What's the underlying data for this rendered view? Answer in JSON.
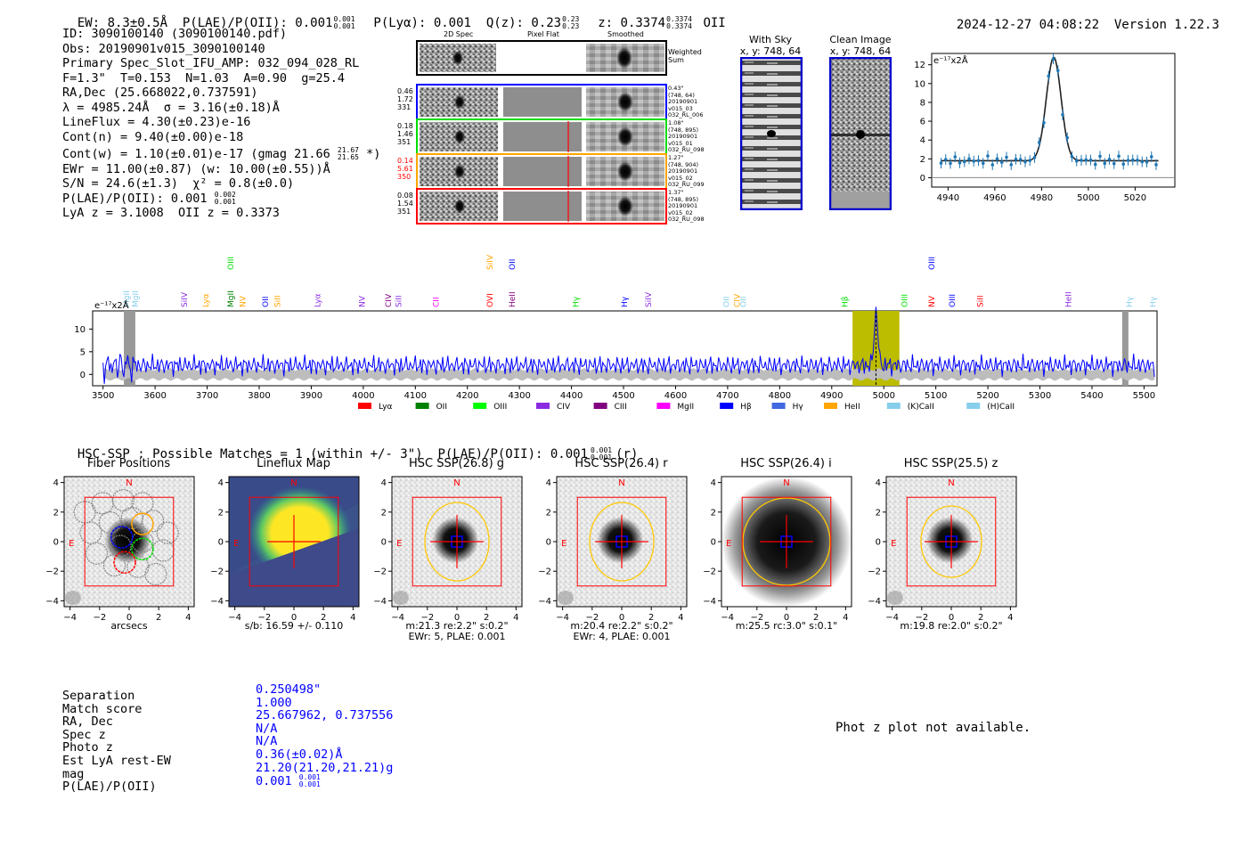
{
  "header": {
    "summary": "EW: 8.3±0.5Å  P(LAE)/P(OII): 0.001",
    "summary_sup": "0.001",
    "summary_sub": "0.001",
    "plya": "P(Lyα): 0.001  Q(z): 0.23",
    "q_sup": "0.23",
    "q_sub": "0.23",
    "z_text": "z: 0.3374",
    "z_sup": "0.3374",
    "z_sub": "0.3374",
    "z_line": "OII",
    "datetime": "2024-12-27 04:08:22",
    "version": "Version 1.22.3"
  },
  "info": {
    "lines": [
      "ID: 3090100140 (3090100140.pdf)",
      "Obs: 20190901v015_3090100140",
      "Primary Spec_Slot_IFU_AMP: 032_094_028_RL",
      "F=1.3\"  T=0.153  N=1.03  A=0.90  g=25.4",
      "RA,Dec (25.668022,0.737591)",
      "λ = 4985.24Å  σ = 3.16(±0.18)Å",
      "LineFlux = 4.30(±0.23)e-16",
      "Cont(n) = 9.40(±0.00)e-18"
    ],
    "contw": "Cont(w) = 1.10(±0.01)e-17 (gmag 21.66",
    "contw_sup": "21.67",
    "contw_sub": "21.65",
    "contw_end": "*)",
    "ewr": "EWr = 11.00(±0.87) (w: 10.00(±0.55))Å",
    "sn": "S/N = 24.6(±1.3)  χ² = 0.8(±0.0)",
    "plae": "P(LAE)/P(OII): 0.001",
    "plae_sup": "0.002",
    "plae_sub": "0.001",
    "lya": "LyA z = 3.1008  OII z = 0.3373"
  },
  "cutouts": {
    "col_2d": "2D Spec",
    "col_flat": "Pixel Flat",
    "col_smooth": "Smoothed",
    "weighted": "Weighted Sum",
    "rows": [
      {
        "left": [
          "0.46",
          "1.72",
          "331"
        ],
        "right": [
          "0.43\"",
          "(748, 64)",
          "20190901",
          "v015_03",
          "032_RL_006"
        ],
        "color": "#0000ff"
      },
      {
        "left": [
          "0.18",
          "1.46",
          "351"
        ],
        "right": [
          "1.08\"",
          "(748, 895)",
          "20190901",
          "v015_01",
          "032_RU_098"
        ],
        "color": "#00dd00"
      },
      {
        "left": [
          "0.14",
          "5.61",
          "350"
        ],
        "right": [
          "1.27\"",
          "(748, 904)",
          "20190901",
          "v015_02",
          "032_RU_099"
        ],
        "color": "#ffa500"
      },
      {
        "left": [
          "0.08",
          "1.54",
          "351"
        ],
        "right": [
          "1.37\"",
          "(748, 895)",
          "20190901",
          "v015_02",
          "032_RU_098"
        ],
        "color": "#ff0000"
      }
    ]
  },
  "thumbs": {
    "with_sky": "With Sky",
    "with_sky_xy": "x, y: 748, 64",
    "clean": "Clean Image",
    "clean_xy": "x, y: 748, 64"
  },
  "zoom": {
    "unit": "e⁻¹⁷x2Å",
    "x_ticks": [
      "4940",
      "4960",
      "4980",
      "5000",
      "5020"
    ],
    "y_ticks": [
      "0",
      "2",
      "4",
      "6",
      "8",
      "10",
      "12"
    ]
  },
  "spectrum": {
    "unit": "e⁻¹⁷x2Å",
    "x_ticks": [
      "3500",
      "3600",
      "3700",
      "3800",
      "3900",
      "4000",
      "4100",
      "4200",
      "4300",
      "4400",
      "4500",
      "4600",
      "4700",
      "4800",
      "4900",
      "5000",
      "5100",
      "5200",
      "5300",
      "5400",
      "5500"
    ],
    "y_ticks": [
      "0",
      "5",
      "10"
    ],
    "line_labels": [
      {
        "t": "MgII",
        "c": "#87ceeb",
        "w": 3545
      },
      {
        "t": "MgII",
        "c": "#87ceeb",
        "w": 3562
      },
      {
        "t": "SiIV",
        "c": "#8a2be2",
        "w": 3656
      },
      {
        "t": "Lyα",
        "c": "#ffa500",
        "w": 3697
      },
      {
        "t": "MgII",
        "c": "#008000",
        "w": 3745
      },
      {
        "t": "NV",
        "c": "#ffa500",
        "w": 3768
      },
      {
        "t": "OII",
        "c": "#0000ff",
        "w": 3812
      },
      {
        "t": "SiII",
        "c": "#ffa500",
        "w": 3835
      },
      {
        "t": "Lyα",
        "c": "#8a2be2",
        "w": 3912
      },
      {
        "t": "NV",
        "c": "#8a2be2",
        "w": 3998
      },
      {
        "t": "CIV",
        "c": "#800080",
        "w": 4048
      },
      {
        "t": "SiII",
        "c": "#8a2be2",
        "w": 4068
      },
      {
        "t": "CII",
        "c": "#ff00ff",
        "w": 4140
      },
      {
        "t": "OVI",
        "c": "#ff0000",
        "w": 4243
      },
      {
        "t": "HeII",
        "c": "#800080",
        "w": 4286
      },
      {
        "t": "Hγ",
        "c": "#00dd00",
        "w": 4408
      },
      {
        "t": "Hγ",
        "c": "#0000ff",
        "w": 4502
      },
      {
        "t": "SiIV",
        "c": "#8a2be2",
        "w": 4548
      },
      {
        "t": "OII",
        "c": "#87ceeb",
        "w": 4698
      },
      {
        "t": "CIV",
        "c": "#ffa500",
        "w": 4718
      },
      {
        "t": "OII",
        "c": "#87ceeb",
        "w": 4730
      },
      {
        "t": "Hβ",
        "c": "#00dd00",
        "w": 4925
      },
      {
        "t": "OIII",
        "c": "#00dd00",
        "w": 5040
      },
      {
        "t": "NV",
        "c": "#ff0000",
        "w": 5092
      },
      {
        "t": "OIII",
        "c": "#0000ff",
        "w": 5131
      },
      {
        "t": "SiII",
        "c": "#ff0000",
        "w": 5185
      },
      {
        "t": "HeII",
        "c": "#8a2be2",
        "w": 5355
      },
      {
        "t": "Hγ",
        "c": "#87ceeb",
        "w": 5472
      },
      {
        "t": "Hγ",
        "c": "#87ceeb",
        "w": 5517
      }
    ],
    "upper_labels": [
      {
        "t": "OIII",
        "c": "#00dd00",
        "w": 3745
      },
      {
        "t": "SiIV",
        "c": "#ffa500",
        "w": 4243
      },
      {
        "t": "OII",
        "c": "#0000ff",
        "w": 4286
      },
      {
        "t": "OIII",
        "c": "#0000ff",
        "w": 5092
      }
    ],
    "legend": [
      {
        "t": "Lyα",
        "c": "#ff0000"
      },
      {
        "t": "OII",
        "c": "#008000"
      },
      {
        "t": "OIII",
        "c": "#00ff00"
      },
      {
        "t": "CIV",
        "c": "#8a2be2"
      },
      {
        "t": "CIII",
        "c": "#800080"
      },
      {
        "t": "MgII",
        "c": "#ff00ff"
      },
      {
        "t": "Hβ",
        "c": "#0000ff"
      },
      {
        "t": "Hγ",
        "c": "#4169e1"
      },
      {
        "t": "HeII",
        "c": "#ffa500"
      },
      {
        "t": "(K)CaII",
        "c": "#87ceeb"
      },
      {
        "t": "(H)CaII",
        "c": "#87ceeb"
      }
    ]
  },
  "hsc": {
    "title": "HSC-SSP : Possible Matches = 1 (within +/- 3\")  P(LAE)/P(OII): 0.001",
    "title_sup": "0.001",
    "title_sub": "0.001",
    "title_end": "(r)",
    "axis_ticks": [
      "−4",
      "−2",
      "0",
      "2",
      "4"
    ],
    "compass_n": "N",
    "compass_e": "E",
    "panels": [
      {
        "title": "Fiber Positions",
        "cap1": "arcsecs",
        "cap2": ""
      },
      {
        "title": "Lineflux Map",
        "cap1": "s/b: 16.59 +/- 0.110",
        "cap2": ""
      },
      {
        "title": "HSC SSP(26.8) g",
        "cap1": "m:21.3  re:2.2\"  s:0.2\"",
        "cap2": "EWr: 5, PLAE: 0.001"
      },
      {
        "title": "HSC SSP(26.4) r",
        "cap1": "m:20.4  re:2.2\"  s:0.2\"",
        "cap2": "EWr: 4, PLAE: 0.001"
      },
      {
        "title": "HSC SSP(26.4) i",
        "cap1": "m:25.5 rc:3.0\"  s:0.1\"",
        "cap2": ""
      },
      {
        "title": "HSC SSP(25.5) z",
        "cap1": "m:19.8  re:2.0\"  s:0.2\"",
        "cap2": ""
      }
    ]
  },
  "match_table": {
    "labels": [
      "Separation",
      "Match score",
      "RA, Dec",
      "Spec z",
      "Photo z",
      "Est LyA rest-EW",
      "mag",
      "P(LAE)/P(OII)"
    ],
    "values": [
      "0.250498\"",
      "1.000",
      "25.667962, 0.737556",
      "N/A",
      "N/A",
      "0.36(±0.02)Å",
      "21.20(21.20,21.21)g",
      "0.001"
    ],
    "plae_sup": "0.001",
    "plae_sub": "0.001"
  },
  "photz": "Phot z plot not available."
}
